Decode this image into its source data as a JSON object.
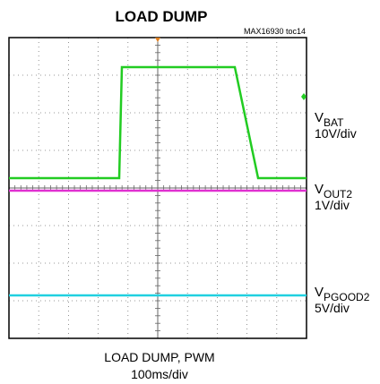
{
  "title": "LOAD DUMP",
  "tag": "MAX16930 toc14",
  "channels": [
    {
      "name": {
        "main": "V",
        "sub": "BAT"
      },
      "scale": "10V/div",
      "color": "#22cc22"
    },
    {
      "name": {
        "main": "V",
        "sub": "OUT2"
      },
      "scale": "1V/div",
      "color": "#e030d0"
    },
    {
      "name": {
        "main": "V",
        "sub": "PGOOD2"
      },
      "scale": "5V/div",
      "color": "#20d0e0"
    }
  ],
  "caption": [
    "LOAD DUMP, PWM",
    "100ms/div"
  ]
}
